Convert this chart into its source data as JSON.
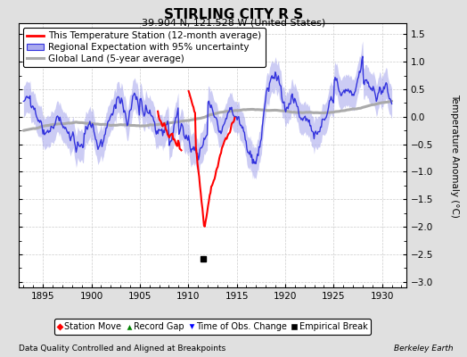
{
  "title": "STIRLING CITY R S",
  "subtitle": "39.904 N, 121.528 W (United States)",
  "xlabel_note": "Data Quality Controlled and Aligned at Breakpoints",
  "xlabel_right": "Berkeley Earth",
  "ylabel": "Temperature Anomaly (°C)",
  "xlim": [
    1892.5,
    1932.5
  ],
  "ylim": [
    -3.1,
    1.7
  ],
  "yticks": [
    -3,
    -2.5,
    -2,
    -1.5,
    -1,
    -0.5,
    0,
    0.5,
    1,
    1.5
  ],
  "xticks": [
    1895,
    1900,
    1905,
    1910,
    1915,
    1920,
    1925,
    1930
  ],
  "background_color": "#e0e0e0",
  "plot_bg_color": "#ffffff",
  "regional_color": "#3333dd",
  "regional_fill_color": "#aaaaee",
  "station_color": "#ff0000",
  "global_color": "#aaaaaa",
  "time_obs_marker_year": 1911.5,
  "time_obs_marker_value": -2.58,
  "legend_fontsize": 7.5,
  "marker_fontsize": 7.0,
  "title_fontsize": 11,
  "subtitle_fontsize": 8
}
